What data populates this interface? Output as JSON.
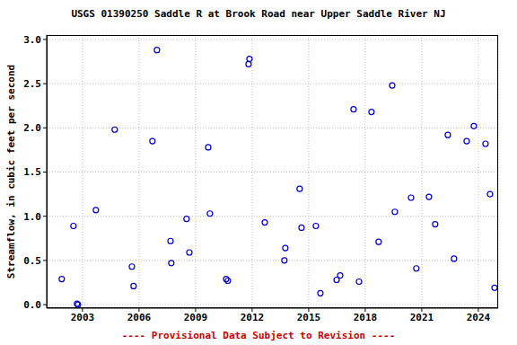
{
  "chart_data": {
    "type": "scatter",
    "title": "USGS 01390250 Saddle R at Brook Road near Upper Saddle River NJ",
    "y_label": "Streamflow, in cubic feet per second",
    "annotation": "---- Provisional Data Subject to Revision ----",
    "color": "#0000cc",
    "marker": "open_circle",
    "grid": true,
    "xlim": [
      2001.1,
      2025.05
    ],
    "xticks": [
      2003,
      2006,
      2009,
      2012,
      2015,
      2018,
      2021,
      2024
    ],
    "ylim": [
      -0.04,
      3.05
    ],
    "yticks": [
      {
        "value": 0,
        "label": "0.0"
      },
      {
        "value": 0.5,
        "label": "0.5"
      },
      {
        "value": 1,
        "label": "1.0"
      },
      {
        "value": 1.5,
        "label": "1.5"
      },
      {
        "value": 2,
        "label": "2.0"
      },
      {
        "value": 2.5,
        "label": "2.5"
      },
      {
        "value": 3,
        "label": "3.0"
      }
    ],
    "x": [
      2001.9,
      2002.52,
      2002.71,
      2002.76,
      2003.71,
      2004.71,
      2005.62,
      2005.71,
      2006.71,
      2006.95,
      2007.67,
      2007.71,
      2008.52,
      2008.67,
      2009.67,
      2009.76,
      2010.62,
      2010.71,
      2011.81,
      2011.86,
      2012.67,
      2013.71,
      2013.76,
      2014.52,
      2014.62,
      2015.38,
      2015.62,
      2016.48,
      2016.67,
      2017.38,
      2017.67,
      2018.33,
      2018.71,
      2019.43,
      2019.57,
      2020.43,
      2020.71,
      2021.38,
      2021.71,
      2022.38,
      2022.71,
      2023.38,
      2023.76,
      2024.38,
      2024.62,
      2024.86
    ],
    "values": [
      0.29,
      0.89,
      0.01,
      0.0,
      1.07,
      1.98,
      0.43,
      0.21,
      1.85,
      2.88,
      0.72,
      0.47,
      0.97,
      0.59,
      1.78,
      1.03,
      0.29,
      0.27,
      2.72,
      2.78,
      0.93,
      0.5,
      0.64,
      1.31,
      0.87,
      0.89,
      0.13,
      0.28,
      0.33,
      2.21,
      0.26,
      2.18,
      0.71,
      2.48,
      1.05,
      1.21,
      0.41,
      1.22,
      0.91,
      1.92,
      0.52,
      1.85,
      2.02,
      1.82,
      1.25,
      0.19
    ]
  }
}
